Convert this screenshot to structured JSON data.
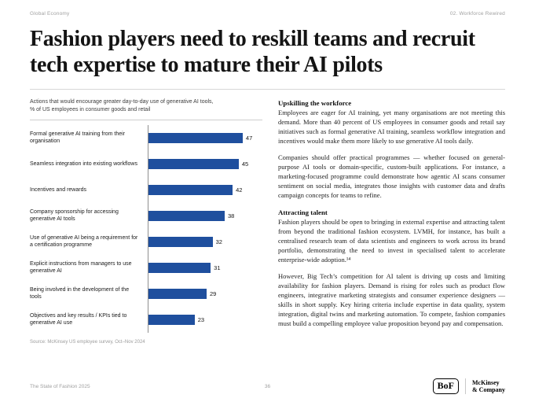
{
  "page": {
    "header_left": "Global Economy",
    "header_right": "02. Workforce Rewired",
    "title": "Fashion players need to reskill teams and recruit tech expertise to mature their AI pilots",
    "footer_left": "The State of Fashion 2025",
    "page_number": "36",
    "logos": {
      "bof": "BoF",
      "mckinsey_line1": "McKinsey",
      "mckinsey_line2": "& Company"
    }
  },
  "chart": {
    "title_line1": "Actions that would encourage greater day-to-day use of generative AI tools,",
    "title_line2": "% of US employees in consumer goods and retail",
    "source": "Source: McKinsey US employee survey, Oct–Nov 2024",
    "bar_color": "#1f4f9e"
  },
  "chart_data": {
    "type": "bar",
    "orientation": "horizontal",
    "title": "Actions that would encourage greater day-to-day use of generative AI tools, % of US employees in consumer goods and retail",
    "categories": [
      "Formal generative AI training from their organisation",
      "Seamless integration into existing workflows",
      "Incentives and rewards",
      "Company sponsorship for accessing generative AI tools",
      "Use of generative AI being a requirement for a certification programme",
      "Explicit instructions from managers to use generative AI",
      "Being involved in the development of the tools",
      "Objectives and key results / KPIs tied to generative AI use"
    ],
    "values": [
      47,
      45,
      42,
      38,
      32,
      31,
      29,
      23
    ],
    "xlim": [
      0,
      50
    ],
    "grid": false,
    "legend": false,
    "value_labels": true
  },
  "article": {
    "sections": [
      {
        "heading": "Upskilling the workforce",
        "paragraphs": [
          "Employees are eager for AI training, yet many organisations are not meeting this demand. More than 40 percent of US employees in consumer goods and retail say initiatives such as formal generative AI training, seamless workflow integration and incentives would make them more likely to use generative AI tools daily.",
          "Companies should offer practical programmes — whether focused on general-purpose AI tools or domain-specific, custom-built applications. For instance, a marketing-focused programme could demonstrate how agentic AI scans consumer sentiment on social media, integrates those insights with customer data and drafts campaign concepts for teams to refine."
        ]
      },
      {
        "heading": "Attracting talent",
        "paragraphs": [
          "Fashion players should be open to bringing in external expertise and attracting talent from beyond the traditional fashion ecosystem. LVMH, for instance, has built a centralised research team of data scientists and engineers to work across its brand portfolio, demonstrating the need to invest in specialised talent to accelerate enterprise-wide adoption.¹⁴",
          "However, Big Tech’s competition for AI talent is driving up costs and limiting availability for fashion players. Demand is rising for roles such as product flow engineers, integrative marketing strategists and consumer experience designers — skills in short supply. Key hiring criteria include expertise in data quality, system integration, digital twins and marketing automation. To compete, fashion companies must build a compelling employee value proposition beyond pay and compensation."
        ]
      }
    ]
  }
}
